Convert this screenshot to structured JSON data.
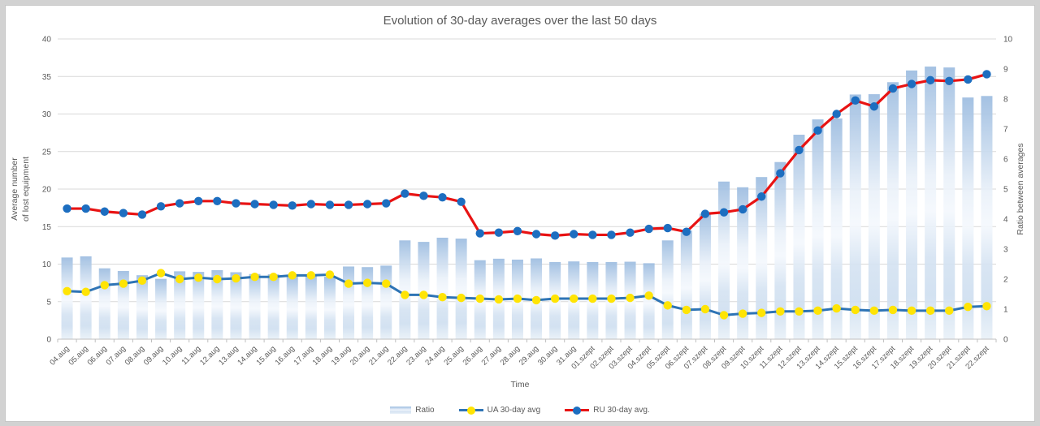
{
  "chart": {
    "title": "Evolution of 30-day averages over the last 50 days",
    "x_axis_title": "Time",
    "left_axis_title_line1": "Average number",
    "left_axis_title_line2": "of lost equipment",
    "right_axis_title": "Ratio between averages",
    "legend": {
      "ratio_label": "Ratio",
      "ua_label": "UA 30-day avg",
      "ru_label": "RU 30-day avg."
    }
  },
  "colors": {
    "ua_line": "#2e74b5",
    "ua_marker": "#ffe404",
    "ru_line": "#e81313",
    "ru_marker": "#1d6ec0",
    "text_gray": "#595959",
    "gridline": "#d9d9d9",
    "axis_line": "#bfbfbf",
    "bar_gradient": [
      "#9cbce0",
      "#eaf1f9",
      "#f4f8fd",
      "#d5e3f2",
      "#cfdff0",
      "#e9f1f8"
    ]
  },
  "chart_data": {
    "type": "bar",
    "subtype": "combo-bar-lines",
    "title": "Evolution of 30-day averages over the last 50 days",
    "xlabel": "Time",
    "ylabel_left": "Average number of lost equipment",
    "ylabel_right": "Ratio between averages",
    "grid": true,
    "legend_position": "bottom",
    "left_axis": {
      "min": 0,
      "max": 40,
      "step": 5
    },
    "right_axis": {
      "min": 0,
      "max": 10,
      "step": 1
    },
    "categories": [
      "04.aug",
      "05.aug",
      "06.aug",
      "07.aug",
      "08.aug",
      "09.aug",
      "10.aug",
      "11.aug",
      "12.aug",
      "13.aug",
      "14.aug",
      "15.aug",
      "16.aug",
      "17.aug",
      "18.aug",
      "19.aug",
      "20.aug",
      "21.aug",
      "22.aug",
      "23.aug",
      "24.aug",
      "25.aug",
      "26.aug",
      "27.aug",
      "28.aug",
      "29.aug",
      "30.aug",
      "31.aug",
      "01.szept",
      "02.szept",
      "03.szept",
      "04.szept",
      "05.szept",
      "06.szept",
      "07.szept",
      "08.szept",
      "09.szept",
      "10.szept",
      "11.szept",
      "12.szept",
      "13.szept",
      "14.szept",
      "15.szept",
      "16.szept",
      "17.szept",
      "18.szept",
      "19.szept",
      "20.szept",
      "21.szept",
      "22.szept"
    ],
    "series": [
      {
        "name": "Ratio",
        "type": "bar",
        "axis": "right",
        "values": [
          2.72,
          2.76,
          2.36,
          2.27,
          2.13,
          2.01,
          2.26,
          2.24,
          2.3,
          2.23,
          2.17,
          2.16,
          2.09,
          2.12,
          2.08,
          2.42,
          2.4,
          2.45,
          3.29,
          3.24,
          3.38,
          3.35,
          2.63,
          2.68,
          2.65,
          2.69,
          2.57,
          2.59,
          2.57,
          2.57,
          2.58,
          2.53,
          3.29,
          3.62,
          4.18,
          5.25,
          5.06,
          5.4,
          5.9,
          6.81,
          7.32,
          7.35,
          8.15,
          8.16,
          8.56,
          8.95,
          9.08,
          9.05,
          8.05,
          8.1
        ]
      },
      {
        "name": "UA 30-day avg",
        "type": "line",
        "axis": "left",
        "values": [
          6.4,
          6.3,
          7.2,
          7.4,
          7.8,
          8.8,
          8.0,
          8.2,
          8.0,
          8.1,
          8.3,
          8.3,
          8.5,
          8.5,
          8.6,
          7.4,
          7.5,
          7.4,
          5.9,
          5.9,
          5.6,
          5.5,
          5.4,
          5.3,
          5.4,
          5.2,
          5.4,
          5.4,
          5.4,
          5.4,
          5.5,
          5.8,
          4.5,
          3.9,
          4.0,
          3.2,
          3.4,
          3.5,
          3.7,
          3.7,
          3.8,
          4.1,
          3.9,
          3.8,
          3.9,
          3.8,
          3.8,
          3.8,
          4.3,
          4.4
        ]
      },
      {
        "name": "RU 30-day avg.",
        "type": "line",
        "axis": "left",
        "values": [
          17.4,
          17.4,
          17.0,
          16.8,
          16.6,
          17.7,
          18.1,
          18.4,
          18.4,
          18.1,
          18.0,
          17.9,
          17.8,
          18.0,
          17.9,
          17.9,
          18.0,
          18.1,
          19.4,
          19.1,
          18.9,
          18.3,
          14.1,
          14.2,
          14.4,
          14.0,
          13.8,
          14.0,
          13.9,
          13.9,
          14.2,
          14.7,
          14.8,
          14.3,
          16.7,
          16.9,
          17.3,
          19.0,
          22.1,
          25.2,
          27.8,
          30.0,
          31.8,
          31.0,
          33.4,
          34.0,
          34.5,
          34.4,
          34.6,
          35.3
        ]
      }
    ]
  }
}
